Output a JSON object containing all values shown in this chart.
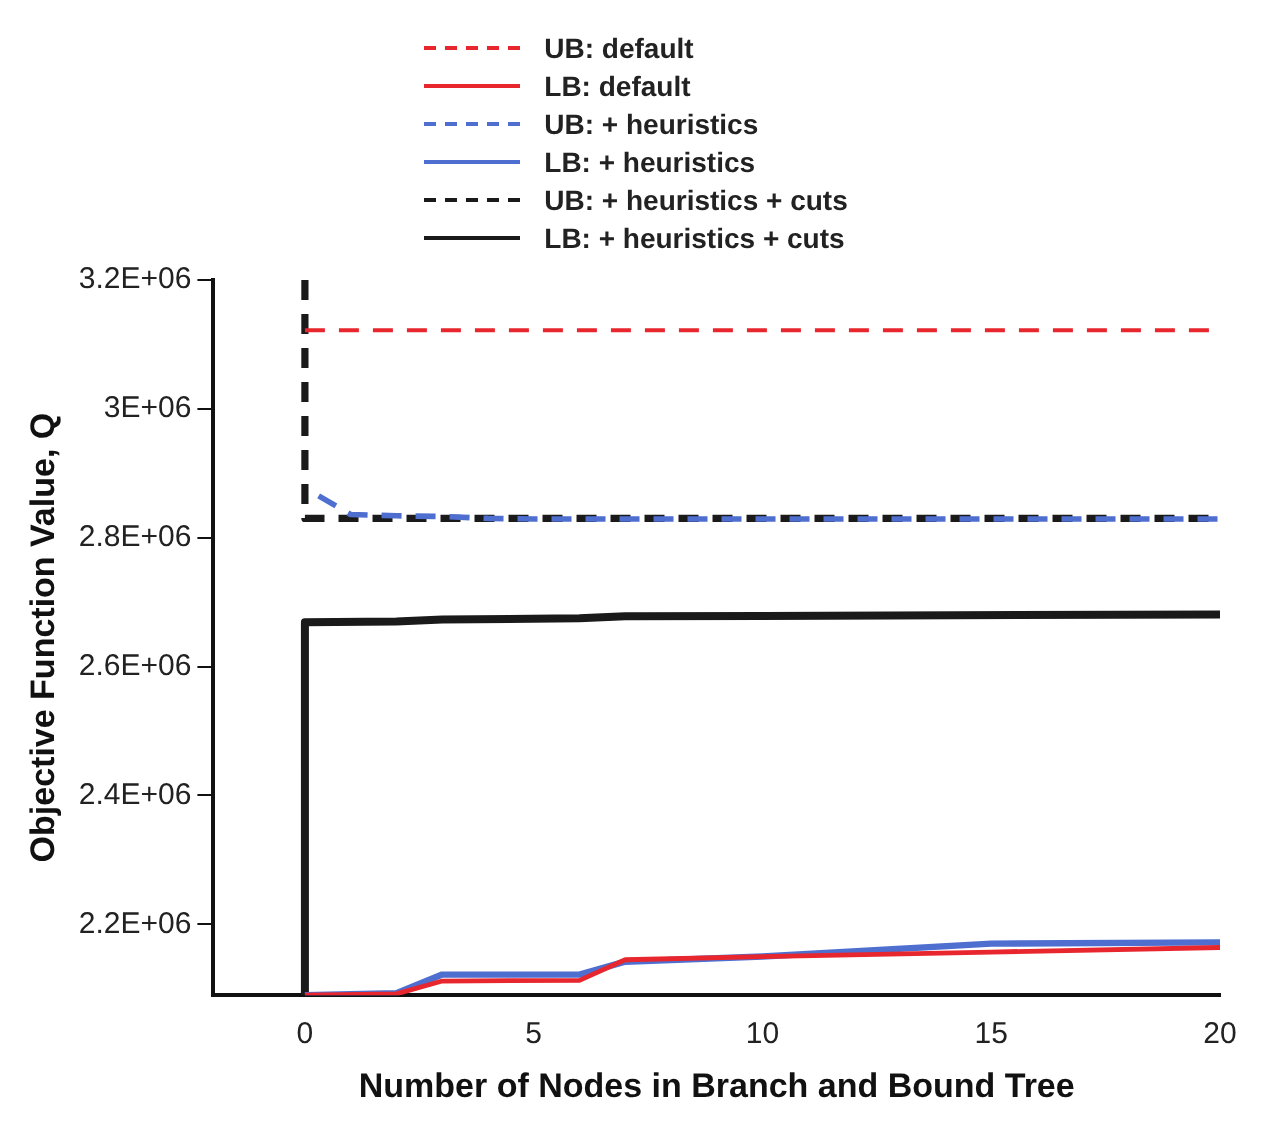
{
  "chart_data": {
    "type": "line",
    "xlabel": "Number of Nodes in Branch and Bound Tree",
    "ylabel": "Objective Function Value, Q",
    "xlim": [
      -2,
      20
    ],
    "xticks": [
      0,
      5,
      10,
      15,
      20
    ],
    "ylim": [
      2090000,
      3200000
    ],
    "yticks": [
      {
        "value": 2200000,
        "label": "2.2E+06"
      },
      {
        "value": 2400000,
        "label": "2.4E+06"
      },
      {
        "value": 2600000,
        "label": "2.6E+06"
      },
      {
        "value": 2800000,
        "label": "2.8E+06"
      },
      {
        "value": 3000000,
        "label": "3E+06"
      },
      {
        "value": 3200000,
        "label": "3.2E+06"
      }
    ],
    "grid": false,
    "legend": "top",
    "marker": "none",
    "series": [
      {
        "name": "UB: default",
        "color": "#e8262e",
        "line_style": "dashed",
        "x": [
          0,
          20
        ],
        "values": [
          3122000,
          3122000
        ]
      },
      {
        "name": "LB: default",
        "color": "#e8262e",
        "line_style": "solid",
        "x": [
          0,
          2,
          3,
          6,
          7,
          10,
          15,
          20
        ],
        "values": [
          2090000,
          2092000,
          2112000,
          2113000,
          2145000,
          2150000,
          2157000,
          2164000
        ]
      },
      {
        "name": "UB: + heuristics",
        "color": "#4f6fd0",
        "line_style": "dashed",
        "x": [
          0.3,
          1,
          2,
          3,
          4,
          5,
          20
        ],
        "values": [
          2865000,
          2836000,
          2834000,
          2833000,
          2830000,
          2829000,
          2829000
        ]
      },
      {
        "name": "LB: + heuristics",
        "color": "#4f6fd0",
        "line_style": "solid",
        "x": [
          0,
          2,
          3,
          6,
          7,
          10,
          15,
          20
        ],
        "values": [
          2090000,
          2093000,
          2122000,
          2122000,
          2142000,
          2150000,
          2170000,
          2172000
        ]
      },
      {
        "name": "UB: + heuristics + cuts",
        "color": "#1a1a1a",
        "line_style": "dashed",
        "x": [
          0,
          0,
          20
        ],
        "values": [
          3200000,
          2830000,
          2830000
        ]
      },
      {
        "name": "LB: + heuristics + cuts",
        "color": "#1a1a1a",
        "line_style": "solid",
        "x": [
          0,
          0,
          2,
          3,
          6,
          7,
          20
        ],
        "values": [
          2090000,
          2669000,
          2670000,
          2673000,
          2675000,
          2678000,
          2681000
        ]
      }
    ]
  }
}
